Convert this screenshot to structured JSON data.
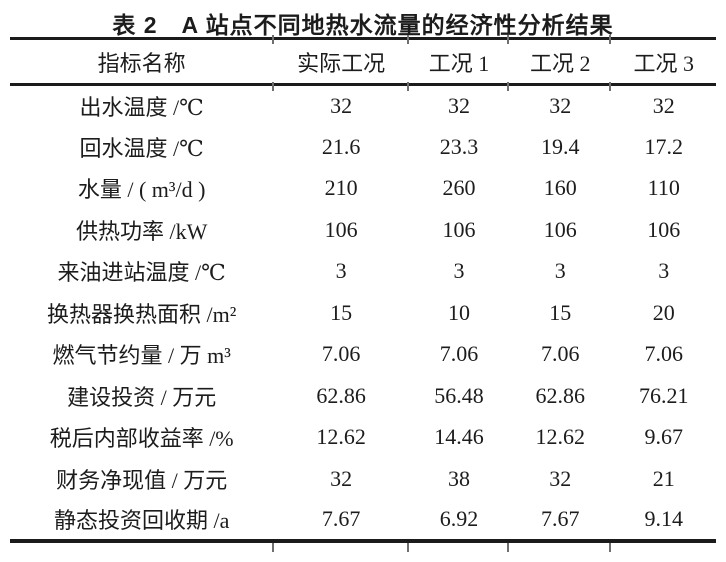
{
  "title": "表 2　A 站点不同地热水流量的经济性分析结果",
  "table": {
    "columns": [
      "指标名称",
      "实际工况",
      "工况 1",
      "工况 2",
      "工况 3"
    ],
    "rows": [
      {
        "label": "出水温度 /℃",
        "values": [
          "32",
          "32",
          "32",
          "32"
        ]
      },
      {
        "label": "回水温度 /℃",
        "values": [
          "21.6",
          "23.3",
          "19.4",
          "17.2"
        ]
      },
      {
        "label": "水量 / ( m³/d )",
        "values": [
          "210",
          "260",
          "160",
          "110"
        ]
      },
      {
        "label": "供热功率 /kW",
        "values": [
          "106",
          "106",
          "106",
          "106"
        ]
      },
      {
        "label": "来油进站温度 /℃",
        "values": [
          "3",
          "3",
          "3",
          "3"
        ]
      },
      {
        "label": "换热器换热面积 /m²",
        "values": [
          "15",
          "10",
          "15",
          "20"
        ]
      },
      {
        "label": "燃气节约量 / 万 m³",
        "values": [
          "7.06",
          "7.06",
          "7.06",
          "7.06"
        ]
      },
      {
        "label": "建设投资 / 万元",
        "values": [
          "62.86",
          "56.48",
          "62.86",
          "76.21"
        ]
      },
      {
        "label": "税后内部收益率 /%",
        "values": [
          "12.62",
          "14.46",
          "12.62",
          "9.67"
        ]
      },
      {
        "label": "财务净现值 / 万元",
        "values": [
          "32",
          "38",
          "32",
          "21"
        ]
      },
      {
        "label": "静态投资回收期 /a",
        "values": [
          "7.67",
          "6.92",
          "7.67",
          "9.14"
        ]
      }
    ]
  },
  "colors": {
    "rule": "#1b1b1b",
    "text": "#1c1c1c",
    "background": "#ffffff"
  }
}
